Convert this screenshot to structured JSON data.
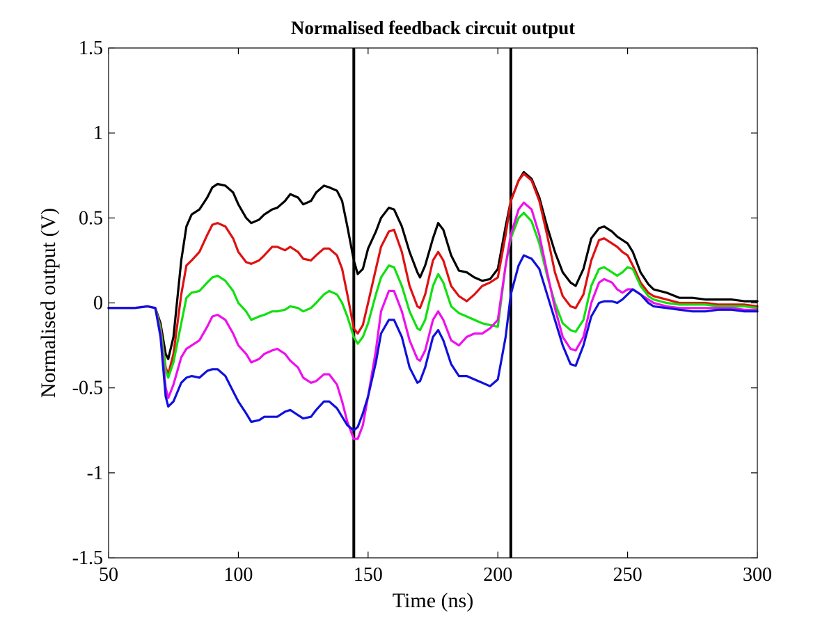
{
  "chart_data": {
    "type": "line",
    "title": "Normalised feedback circuit output",
    "xlabel": "Time (ns)",
    "ylabel": "Normalised output (V)",
    "xlim": [
      50,
      300
    ],
    "ylim": [
      -1.5,
      1.5
    ],
    "xticks": [
      50,
      100,
      150,
      200,
      250,
      300
    ],
    "xtick_labels": [
      "50",
      "100",
      "150",
      "200",
      "250",
      "300"
    ],
    "yticks": [
      -1.5,
      -1,
      -0.5,
      0,
      0.5,
      1,
      1.5
    ],
    "ytick_labels": [
      "-1.5",
      "-1",
      "-0.5",
      "0",
      "0.5",
      "1",
      "1.5"
    ],
    "grid": false,
    "legend": "none",
    "vertical_lines": [
      {
        "x": 144.5,
        "color": "#000000"
      },
      {
        "x": 205,
        "color": "#000000"
      }
    ],
    "series": [
      {
        "color": "#000000",
        "x": [
          50,
          55,
          60,
          65,
          68,
          70,
          72,
          73,
          75,
          78,
          80,
          82,
          85,
          88,
          90,
          92,
          95,
          98,
          100,
          103,
          105,
          108,
          110,
          113,
          115,
          118,
          120,
          123,
          125,
          128,
          130,
          133,
          135,
          138,
          140,
          142,
          144.5,
          146,
          148,
          150,
          153,
          155,
          158,
          160,
          163,
          166,
          169,
          170,
          172,
          175,
          177,
          179,
          182,
          185,
          188,
          191,
          194,
          197,
          200,
          203,
          205,
          208,
          210,
          213,
          216,
          219,
          222,
          225,
          228,
          230,
          233,
          236,
          239,
          241,
          244,
          246,
          248,
          250,
          252,
          255,
          258,
          260,
          265,
          270,
          275,
          280,
          285,
          290,
          295,
          300
        ],
        "y": [
          -0.03,
          -0.03,
          -0.03,
          -0.02,
          -0.03,
          -0.12,
          -0.3,
          -0.33,
          -0.2,
          0.25,
          0.45,
          0.52,
          0.55,
          0.62,
          0.68,
          0.7,
          0.69,
          0.65,
          0.58,
          0.5,
          0.47,
          0.49,
          0.52,
          0.55,
          0.56,
          0.6,
          0.64,
          0.62,
          0.58,
          0.6,
          0.65,
          0.69,
          0.68,
          0.66,
          0.6,
          0.45,
          0.25,
          0.17,
          0.2,
          0.32,
          0.42,
          0.5,
          0.56,
          0.55,
          0.45,
          0.3,
          0.18,
          0.15,
          0.22,
          0.38,
          0.47,
          0.43,
          0.28,
          0.19,
          0.18,
          0.15,
          0.13,
          0.14,
          0.2,
          0.45,
          0.6,
          0.72,
          0.77,
          0.73,
          0.62,
          0.45,
          0.3,
          0.18,
          0.12,
          0.1,
          0.2,
          0.38,
          0.44,
          0.45,
          0.42,
          0.39,
          0.37,
          0.35,
          0.3,
          0.18,
          0.11,
          0.08,
          0.06,
          0.03,
          0.03,
          0.02,
          0.02,
          0.02,
          0.01,
          0.01
        ]
      },
      {
        "color": "#e01010",
        "x": [
          50,
          55,
          60,
          65,
          68,
          70,
          72,
          73,
          75,
          78,
          80,
          82,
          85,
          88,
          90,
          92,
          95,
          98,
          100,
          103,
          105,
          108,
          110,
          113,
          115,
          118,
          120,
          123,
          125,
          128,
          130,
          133,
          135,
          138,
          140,
          142,
          144.5,
          146,
          148,
          150,
          153,
          155,
          158,
          160,
          163,
          166,
          169,
          170,
          172,
          175,
          177,
          179,
          182,
          185,
          188,
          191,
          194,
          197,
          200,
          203,
          205,
          208,
          210,
          213,
          216,
          219,
          222,
          225,
          228,
          230,
          233,
          236,
          239,
          241,
          244,
          246,
          248,
          250,
          252,
          255,
          258,
          260,
          265,
          270,
          275,
          280,
          285,
          290,
          295,
          300
        ],
        "y": [
          -0.03,
          -0.03,
          -0.03,
          -0.02,
          -0.03,
          -0.14,
          -0.38,
          -0.42,
          -0.3,
          0.05,
          0.22,
          0.25,
          0.3,
          0.4,
          0.46,
          0.47,
          0.45,
          0.38,
          0.3,
          0.24,
          0.23,
          0.25,
          0.28,
          0.33,
          0.33,
          0.31,
          0.33,
          0.3,
          0.26,
          0.25,
          0.28,
          0.32,
          0.32,
          0.28,
          0.2,
          0.05,
          -0.15,
          -0.18,
          -0.13,
          0.0,
          0.2,
          0.33,
          0.42,
          0.43,
          0.3,
          0.1,
          -0.02,
          -0.03,
          0.05,
          0.25,
          0.3,
          0.25,
          0.1,
          0.04,
          0.01,
          0.05,
          0.1,
          0.12,
          0.15,
          0.4,
          0.6,
          0.72,
          0.76,
          0.72,
          0.6,
          0.4,
          0.18,
          0.04,
          -0.02,
          -0.03,
          0.05,
          0.25,
          0.37,
          0.38,
          0.35,
          0.33,
          0.3,
          0.28,
          0.22,
          0.12,
          0.06,
          0.04,
          0.02,
          0.0,
          0.0,
          0.0,
          -0.01,
          -0.01,
          -0.01,
          -0.02
        ]
      },
      {
        "color": "#10e010",
        "x": [
          50,
          55,
          60,
          65,
          68,
          70,
          72,
          73,
          75,
          78,
          80,
          82,
          85,
          88,
          90,
          92,
          95,
          98,
          100,
          103,
          105,
          108,
          110,
          113,
          115,
          118,
          120,
          123,
          125,
          128,
          130,
          133,
          135,
          138,
          140,
          142,
          144.5,
          146,
          148,
          150,
          153,
          155,
          158,
          160,
          163,
          166,
          169,
          170,
          172,
          175,
          177,
          179,
          182,
          185,
          188,
          191,
          194,
          197,
          200,
          203,
          205,
          208,
          210,
          213,
          216,
          219,
          222,
          225,
          228,
          230,
          233,
          236,
          239,
          241,
          244,
          246,
          248,
          250,
          252,
          255,
          258,
          260,
          265,
          270,
          275,
          280,
          285,
          290,
          295,
          300
        ],
        "y": [
          -0.03,
          -0.03,
          -0.03,
          -0.02,
          -0.03,
          -0.15,
          -0.4,
          -0.44,
          -0.35,
          -0.12,
          0.03,
          0.06,
          0.07,
          0.12,
          0.15,
          0.16,
          0.13,
          0.07,
          0.0,
          -0.05,
          -0.1,
          -0.08,
          -0.07,
          -0.05,
          -0.05,
          -0.04,
          -0.02,
          -0.03,
          -0.05,
          -0.03,
          0.0,
          0.05,
          0.07,
          0.05,
          0.0,
          -0.08,
          -0.2,
          -0.24,
          -0.2,
          -0.12,
          0.05,
          0.15,
          0.22,
          0.21,
          0.1,
          -0.05,
          -0.15,
          -0.16,
          -0.1,
          0.1,
          0.17,
          0.12,
          -0.02,
          -0.06,
          -0.08,
          -0.1,
          -0.12,
          -0.13,
          -0.14,
          0.22,
          0.38,
          0.5,
          0.53,
          0.48,
          0.35,
          0.16,
          0.0,
          -0.12,
          -0.16,
          -0.17,
          -0.1,
          0.1,
          0.2,
          0.21,
          0.18,
          0.16,
          0.18,
          0.21,
          0.2,
          0.1,
          0.04,
          0.02,
          0.0,
          -0.01,
          -0.01,
          -0.01,
          -0.02,
          -0.02,
          -0.02,
          -0.03
        ]
      },
      {
        "color": "#ee10ee",
        "x": [
          50,
          55,
          60,
          65,
          68,
          70,
          72,
          73,
          75,
          78,
          80,
          82,
          85,
          88,
          90,
          92,
          95,
          98,
          100,
          103,
          105,
          108,
          110,
          113,
          115,
          118,
          120,
          123,
          125,
          128,
          130,
          133,
          135,
          138,
          140,
          142,
          144.5,
          146,
          148,
          150,
          153,
          155,
          158,
          160,
          163,
          166,
          169,
          170,
          172,
          175,
          177,
          179,
          182,
          185,
          188,
          191,
          194,
          197,
          200,
          203,
          205,
          208,
          210,
          213,
          216,
          219,
          222,
          225,
          228,
          230,
          233,
          236,
          239,
          241,
          244,
          246,
          248,
          250,
          252,
          255,
          258,
          260,
          265,
          270,
          275,
          280,
          285,
          290,
          295,
          300
        ],
        "y": [
          -0.03,
          -0.03,
          -0.03,
          -0.02,
          -0.03,
          -0.18,
          -0.5,
          -0.56,
          -0.48,
          -0.32,
          -0.27,
          -0.25,
          -0.22,
          -0.14,
          -0.08,
          -0.07,
          -0.1,
          -0.18,
          -0.25,
          -0.3,
          -0.35,
          -0.33,
          -0.3,
          -0.28,
          -0.27,
          -0.3,
          -0.34,
          -0.38,
          -0.44,
          -0.47,
          -0.46,
          -0.42,
          -0.42,
          -0.48,
          -0.58,
          -0.7,
          -0.8,
          -0.8,
          -0.72,
          -0.55,
          -0.28,
          -0.05,
          0.07,
          0.07,
          -0.05,
          -0.22,
          -0.33,
          -0.34,
          -0.28,
          -0.1,
          -0.05,
          -0.1,
          -0.22,
          -0.25,
          -0.2,
          -0.18,
          -0.18,
          -0.15,
          -0.1,
          0.22,
          0.4,
          0.55,
          0.59,
          0.55,
          0.4,
          0.18,
          -0.03,
          -0.2,
          -0.27,
          -0.28,
          -0.2,
          0.0,
          0.12,
          0.14,
          0.12,
          0.08,
          0.06,
          0.08,
          0.08,
          0.05,
          0.02,
          0.0,
          -0.02,
          -0.03,
          -0.03,
          -0.03,
          -0.03,
          -0.03,
          -0.04,
          -0.04
        ]
      },
      {
        "color": "#1010dd",
        "x": [
          50,
          55,
          60,
          65,
          68,
          70,
          72,
          73,
          75,
          78,
          80,
          82,
          85,
          88,
          90,
          92,
          95,
          98,
          100,
          103,
          105,
          108,
          110,
          113,
          115,
          118,
          120,
          123,
          125,
          128,
          130,
          133,
          135,
          138,
          140,
          142,
          144.5,
          146,
          148,
          150,
          153,
          155,
          158,
          160,
          163,
          166,
          169,
          170,
          172,
          175,
          177,
          179,
          182,
          185,
          188,
          191,
          194,
          197,
          200,
          203,
          205,
          208,
          210,
          213,
          216,
          219,
          222,
          225,
          228,
          230,
          233,
          236,
          239,
          241,
          244,
          246,
          248,
          250,
          252,
          255,
          258,
          260,
          265,
          270,
          275,
          280,
          285,
          290,
          295,
          300
        ],
        "y": [
          -0.03,
          -0.03,
          -0.03,
          -0.02,
          -0.03,
          -0.2,
          -0.55,
          -0.61,
          -0.58,
          -0.47,
          -0.44,
          -0.43,
          -0.44,
          -0.4,
          -0.39,
          -0.39,
          -0.43,
          -0.52,
          -0.58,
          -0.65,
          -0.7,
          -0.69,
          -0.67,
          -0.67,
          -0.67,
          -0.64,
          -0.63,
          -0.66,
          -0.68,
          -0.67,
          -0.63,
          -0.58,
          -0.58,
          -0.62,
          -0.67,
          -0.72,
          -0.75,
          -0.73,
          -0.65,
          -0.55,
          -0.35,
          -0.18,
          -0.1,
          -0.1,
          -0.2,
          -0.38,
          -0.47,
          -0.46,
          -0.38,
          -0.2,
          -0.16,
          -0.22,
          -0.36,
          -0.43,
          -0.43,
          -0.45,
          -0.47,
          -0.49,
          -0.45,
          -0.2,
          0.05,
          0.22,
          0.28,
          0.26,
          0.2,
          0.05,
          -0.1,
          -0.25,
          -0.36,
          -0.37,
          -0.25,
          -0.08,
          0.0,
          0.01,
          0.01,
          0.0,
          0.02,
          0.05,
          0.08,
          0.05,
          0.0,
          -0.02,
          -0.03,
          -0.04,
          -0.05,
          -0.05,
          -0.04,
          -0.04,
          -0.05,
          -0.05
        ]
      }
    ]
  }
}
